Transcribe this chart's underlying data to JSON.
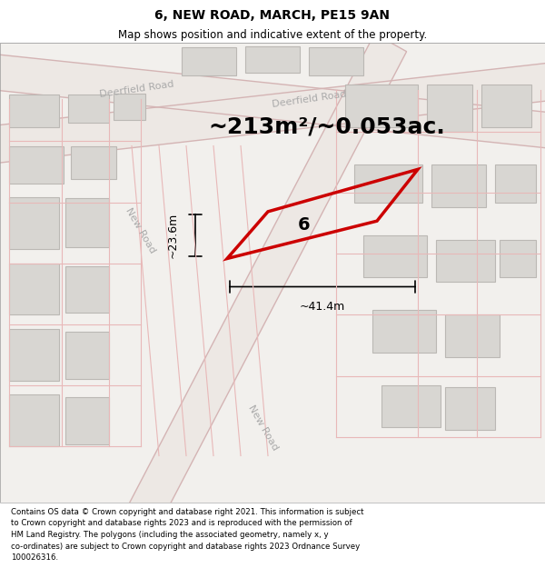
{
  "title": "6, NEW ROAD, MARCH, PE15 9AN",
  "subtitle": "Map shows position and indicative extent of the property.",
  "area_text": "~213m²/~0.053ac.",
  "dim_width": "~41.4m",
  "dim_height": "~23.6m",
  "plot_number": "6",
  "footer": "Contains OS data © Crown copyright and database right 2021. This information is subject to Crown copyright and database rights 2023 and is reproduced with the permission of HM Land Registry. The polygons (including the associated geometry, namely x, y co-ordinates) are subject to Crown copyright and database rights 2023 Ordnance Survey 100026316.",
  "bg_color": "#f0eeeb",
  "map_bg": "#f5f3f0",
  "plot_color": "#cc0000",
  "road_color": "#e8c8c8",
  "building_color": "#dcdcdc",
  "building_outline": "#c0c0c0"
}
